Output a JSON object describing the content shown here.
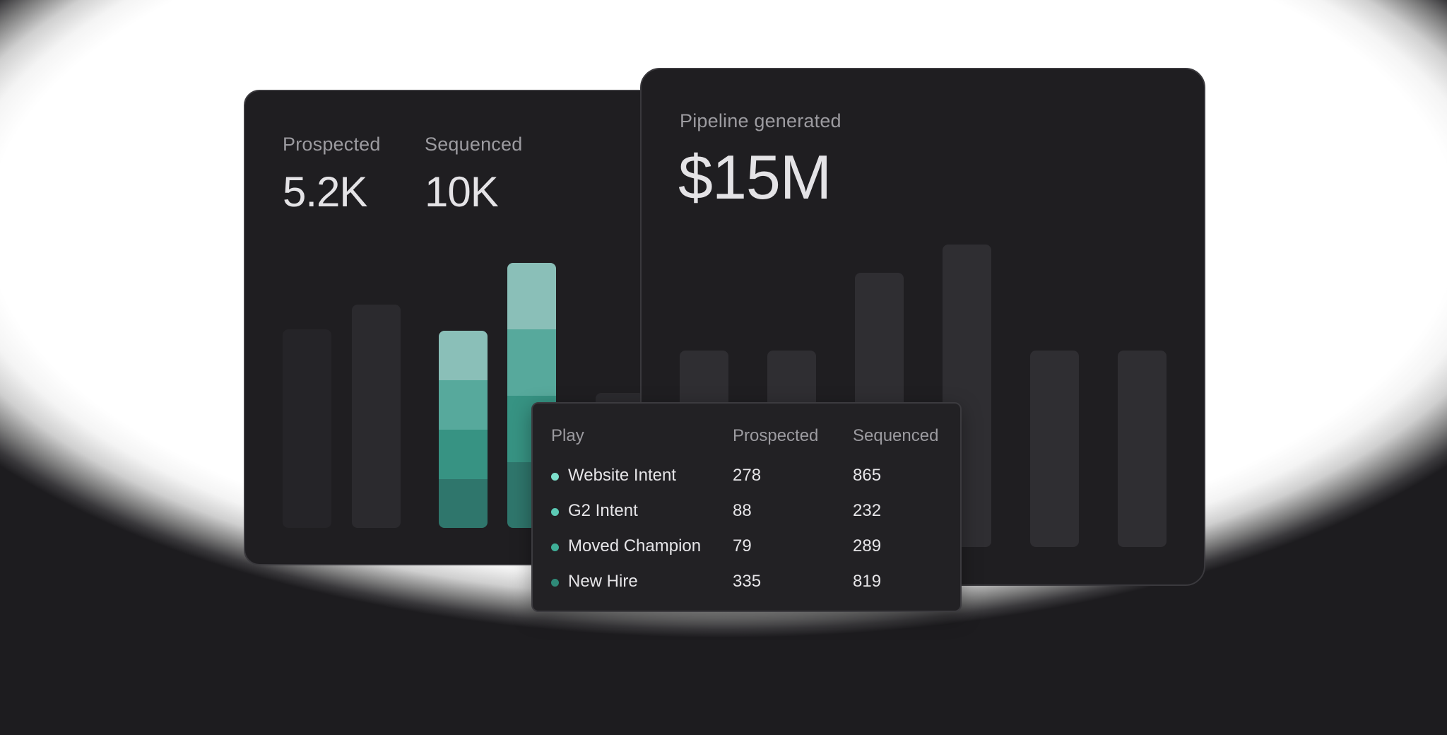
{
  "left_card": {
    "metrics": [
      {
        "label": "Prospected",
        "value": "5.2K"
      },
      {
        "label": "Sequenced",
        "value": "10K"
      }
    ]
  },
  "right_card": {
    "label": "Pipeline generated",
    "value": "$15M"
  },
  "popup": {
    "headers": [
      "Play",
      "Prospected",
      "Sequenced"
    ],
    "rows": [
      {
        "play": "Website Intent",
        "prospected": "278",
        "sequenced": "865",
        "color": "#7ee0cc"
      },
      {
        "play": "G2 Intent",
        "prospected": "88",
        "sequenced": "232",
        "color": "#5ccab5"
      },
      {
        "play": "Moved Champion",
        "prospected": "79",
        "sequenced": "289",
        "color": "#3fae97"
      },
      {
        "play": "New Hire",
        "prospected": "335",
        "sequenced": "819",
        "color": "#2f8a78"
      }
    ]
  },
  "colors": {
    "card_bg": "#1f1e21",
    "teal_1": "#8abfb8",
    "teal_2": "#57a99c",
    "teal_3": "#379383",
    "teal_4": "#2f766c"
  }
}
